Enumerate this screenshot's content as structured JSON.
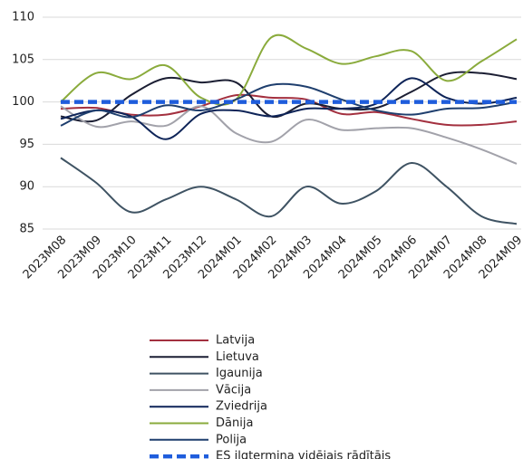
{
  "chart_data": {
    "type": "line",
    "categories": [
      "2023M08",
      "2023M09",
      "2023M10",
      "2023M11",
      "2023M12",
      "2024M01",
      "2024M02",
      "2024M03",
      "2024M04",
      "2024M05",
      "2024M06",
      "2024M07",
      "2024M08",
      "2024M09"
    ],
    "ylim": [
      85,
      110
    ],
    "yticks": [
      85,
      90,
      95,
      100,
      105,
      110
    ],
    "grid": true,
    "series": [
      {
        "name": "Latvija",
        "color": "#a3303f",
        "values": [
          99.2,
          99.3,
          98.5,
          98.5,
          99.5,
          100.8,
          100.5,
          100.3,
          98.6,
          98.8,
          98.0,
          97.3,
          97.3,
          97.7
        ]
      },
      {
        "name": "Lietuva",
        "color": "#1b1e33",
        "values": [
          98.3,
          97.8,
          100.8,
          102.8,
          102.3,
          102.3,
          98.3,
          99.8,
          99.2,
          99.3,
          101.2,
          103.3,
          103.4,
          102.7
        ]
      },
      {
        "name": "Igaunija",
        "color": "#3f5363",
        "values": [
          93.4,
          90.5,
          87.0,
          88.5,
          90.0,
          88.5,
          86.5,
          90.0,
          88.0,
          89.5,
          92.8,
          90.0,
          86.5,
          85.6
        ]
      },
      {
        "name": "Vācija",
        "color": "#a2a2aa",
        "values": [
          99.5,
          97.1,
          97.7,
          97.2,
          99.5,
          96.3,
          95.3,
          97.9,
          96.7,
          96.9,
          96.9,
          95.8,
          94.4,
          92.7
        ]
      },
      {
        "name": "Zviedrija",
        "color": "#0e2458",
        "values": [
          98.0,
          99.0,
          98.3,
          95.6,
          98.6,
          99.0,
          98.3,
          99.2,
          99.2,
          99.8,
          102.8,
          100.5,
          99.8,
          100.5
        ]
      },
      {
        "name": "Dānija",
        "color": "#8aab3c",
        "values": [
          100.0,
          103.4,
          102.7,
          104.3,
          100.5,
          100.3,
          107.6,
          106.3,
          104.5,
          105.4,
          106.0,
          102.5,
          104.8,
          107.4
        ]
      },
      {
        "name": "Polija",
        "color": "#1f3f6e",
        "values": [
          97.2,
          99.0,
          98.2,
          99.6,
          99.0,
          100.3,
          102.0,
          101.8,
          100.3,
          99.0,
          98.5,
          99.2,
          99.3,
          100.0
        ]
      },
      {
        "name": "ES ilgtermiņa vidējais rādītājs",
        "color": "#1f5ddc",
        "dashed": true,
        "values": [
          100,
          100,
          100,
          100,
          100,
          100,
          100,
          100,
          100,
          100,
          100,
          100,
          100,
          100
        ]
      }
    ]
  }
}
